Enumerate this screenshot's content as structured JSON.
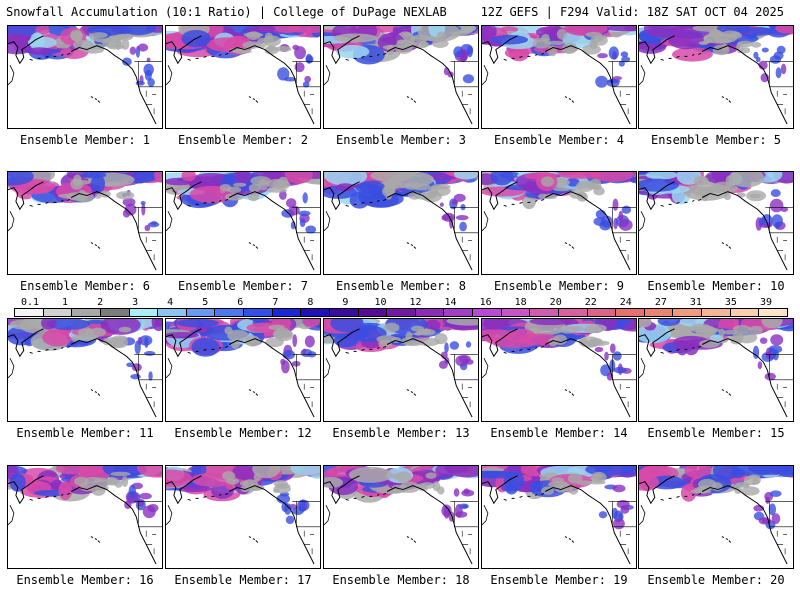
{
  "header": {
    "left_title": "Snowfall Accumulation (10:1 Ratio) | College of DuPage NEXLAB",
    "right_title": "12Z GEFS | F294 Valid: 18Z SAT OCT 04 2025"
  },
  "panels": [
    {
      "label": "Ensemble Member: 1"
    },
    {
      "label": "Ensemble Member: 2"
    },
    {
      "label": "Ensemble Member: 3"
    },
    {
      "label": "Ensemble Member: 4"
    },
    {
      "label": "Ensemble Member: 5"
    },
    {
      "label": "Ensemble Member: 6"
    },
    {
      "label": "Ensemble Member: 7"
    },
    {
      "label": "Ensemble Member: 8"
    },
    {
      "label": "Ensemble Member: 9"
    },
    {
      "label": "Ensemble Member: 10"
    },
    {
      "label": "Ensemble Member: 11"
    },
    {
      "label": "Ensemble Member: 12"
    },
    {
      "label": "Ensemble Member: 13"
    },
    {
      "label": "Ensemble Member: 14"
    },
    {
      "label": "Ensemble Member: 15"
    },
    {
      "label": "Ensemble Member: 16"
    },
    {
      "label": "Ensemble Member: 17"
    },
    {
      "label": "Ensemble Member: 18"
    },
    {
      "label": "Ensemble Member: 19"
    },
    {
      "label": "Ensemble Member: 20"
    }
  ],
  "colorbar": {
    "labels": [
      "0.1",
      "1",
      "2",
      "3",
      "4",
      "5",
      "6",
      "7",
      "8",
      "9",
      "10",
      "12",
      "14",
      "16",
      "18",
      "20",
      "22",
      "24",
      "27",
      "31",
      "35",
      "39"
    ],
    "colors": [
      "#f4f4f4",
      "#d2d2d2",
      "#a8a8a8",
      "#7c7c7c",
      "#a8eef4",
      "#8cc4f4",
      "#6898f0",
      "#4c78f0",
      "#3050e8",
      "#1c28d8",
      "#2410b8",
      "#3a0e9c",
      "#560c94",
      "#7418a4",
      "#8c2cb8",
      "#a43cc8",
      "#b84ad4",
      "#c854c8",
      "#d05cb0",
      "#d8609c",
      "#dc6488",
      "#e47070",
      "#ea8470",
      "#f09a80",
      "#f4b496",
      "#f8ceae",
      "#fce4c8"
    ]
  },
  "map_colors": {
    "land": "#ffffff",
    "coast": "#000000",
    "snow_gray": "#a9a9a9",
    "snow_light": "#9ad6f0",
    "snow_blue": "#3a4de0",
    "snow_purple": "#8a2fc0",
    "snow_pink": "#d84aa8",
    "snow_peach": "#f4b496"
  }
}
